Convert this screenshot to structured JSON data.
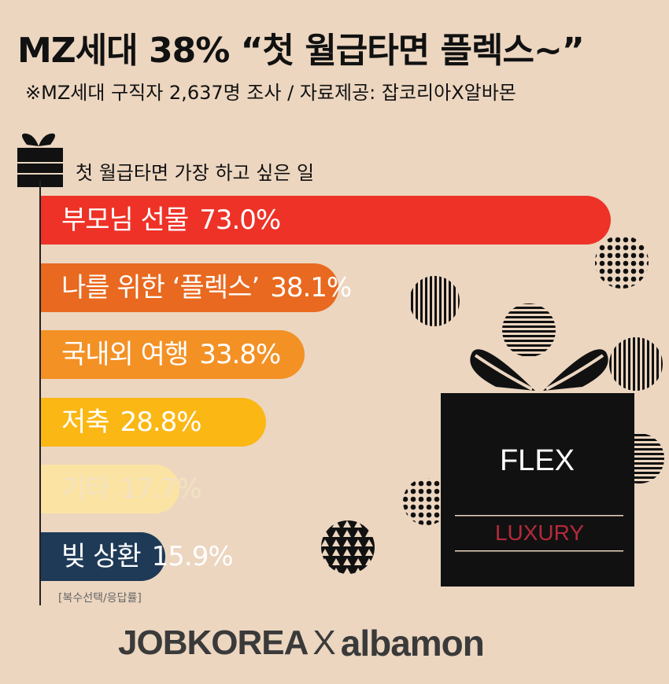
{
  "header": {
    "title": "MZ세대 38% “첫 월급타면 플렉스~”",
    "subtitle": "※MZ세대 구직자 2,637명 조사 / 자료제공: 잡코리아X알바몬"
  },
  "chart_data": {
    "type": "bar",
    "orientation": "horizontal",
    "title": "첫 월급타면 가장 하고 싶은 일",
    "categories": [
      "부모님 선물",
      "나를 위한 ‘플렉스’",
      "국내외 여행",
      "저축",
      "기타",
      "빚 상환"
    ],
    "values": [
      73.0,
      38.1,
      33.8,
      28.8,
      17.7,
      15.9
    ],
    "value_labels": [
      "73.0%",
      "38.1%",
      "33.8%",
      "28.8%",
      "17.7%",
      "15.9%"
    ],
    "unit": "%",
    "colors": [
      "#ee3227",
      "#e8691f",
      "#f39125",
      "#fbb714",
      "#fbe4a3",
      "#1f3a57"
    ],
    "label_colors": [
      "#ffffff",
      "#ffffff",
      "#ffffff",
      "#ffffff",
      "#f3e2c2",
      "#ffffff"
    ],
    "xlim": [
      0,
      73.0
    ],
    "note": "[복수선택/응답률]"
  },
  "decoration": {
    "gift_box_text": "FLEX",
    "gift_box_subtext": "LUXURY",
    "icons": [
      "gift-icon",
      "gift-box-illustration",
      "dotted-ball",
      "striped-ball",
      "triangle-pattern-ball"
    ]
  },
  "footer": {
    "logo_left": "JOBKOREA",
    "logo_x": "X",
    "logo_right": "albamon",
    "brand_accent": "#f47a20"
  }
}
